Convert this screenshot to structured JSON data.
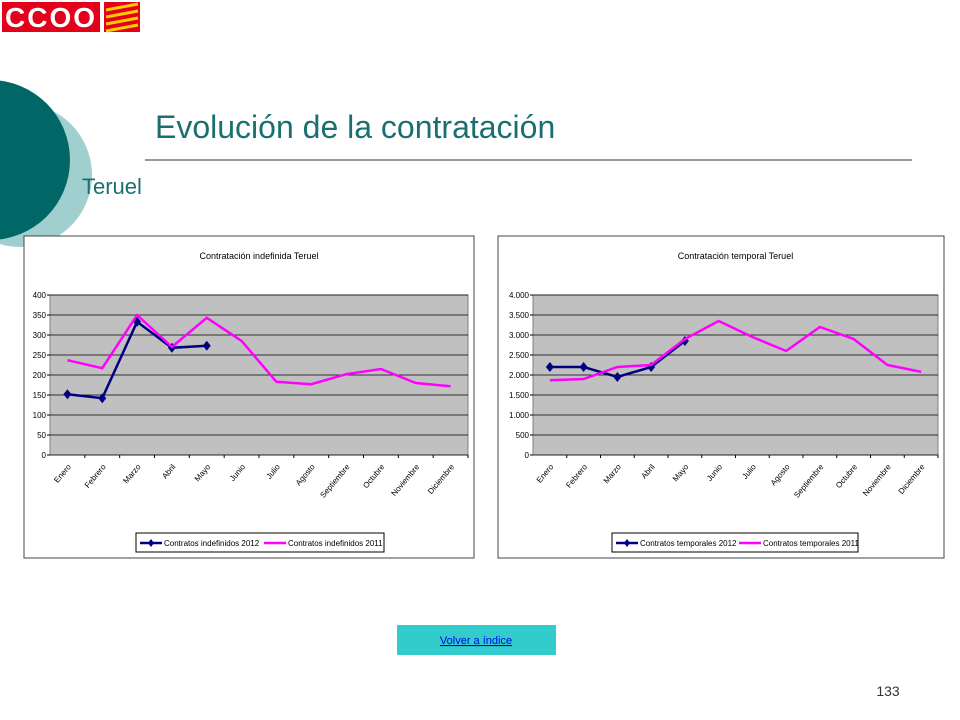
{
  "slide": {
    "logo": "CCOO",
    "title": "Evolución de la contratación",
    "subtitle": "Teruel",
    "button": "Volver a índice",
    "page_number": "133"
  },
  "chart_data": [
    {
      "type": "line",
      "title": "Contratación indefinida Teruel",
      "categories": [
        "Enero",
        "Febrero",
        "Marzo",
        "Abril",
        "Mayo",
        "Junio",
        "Julio",
        "Agosto",
        "Septiembre",
        "Octubre",
        "Noviembre",
        "Diciembre"
      ],
      "series": [
        {
          "name": "Contratos indefinidos 2012",
          "color": "#000080",
          "marker": "diamond",
          "values": [
            152,
            142,
            333,
            268,
            273,
            null,
            null,
            null,
            null,
            null,
            null,
            null
          ]
        },
        {
          "name": "Contratos indefinidos 2011",
          "color": "#ff00ff",
          "values": [
            237,
            217,
            350,
            270,
            343,
            285,
            183,
            177,
            202,
            215,
            180,
            172
          ]
        }
      ],
      "ylim": [
        0,
        400
      ],
      "yticks": [
        0,
        50,
        100,
        150,
        200,
        250,
        300,
        350,
        400
      ],
      "grid": true,
      "legend": "bottom"
    },
    {
      "type": "line",
      "title": "Contratación temporal Teruel",
      "categories": [
        "Enero",
        "Febrero",
        "Marzo",
        "Abril",
        "Mayo",
        "Junio",
        "Julio",
        "Agosto",
        "Septiembre",
        "Octubre",
        "Noviembre",
        "Diciembre"
      ],
      "series": [
        {
          "name": "Contratos temporales 2012",
          "color": "#000080",
          "marker": "diamond",
          "values": [
            2200,
            2200,
            1950,
            2200,
            2850,
            null,
            null,
            null,
            null,
            null,
            null,
            null
          ]
        },
        {
          "name": "Contratos temporales 2011",
          "color": "#ff00ff",
          "values": [
            1870,
            1900,
            2200,
            2250,
            2900,
            3350,
            2950,
            2600,
            3200,
            2900,
            2250,
            2080
          ]
        }
      ],
      "ylim": [
        0,
        4000
      ],
      "yticks": [
        0,
        500,
        {
          "value": 1000,
          "label": "1.000"
        },
        {
          "value": 1500,
          "label": "1.500"
        },
        {
          "value": 2000,
          "label": "2.000"
        },
        {
          "value": 2500,
          "label": "2.500"
        },
        {
          "value": 3000,
          "label": "3.000"
        },
        {
          "value": 3500,
          "label": "3.500"
        },
        {
          "value": 4000,
          "label": "4.000"
        }
      ],
      "grid": true,
      "legend": "bottom"
    }
  ]
}
